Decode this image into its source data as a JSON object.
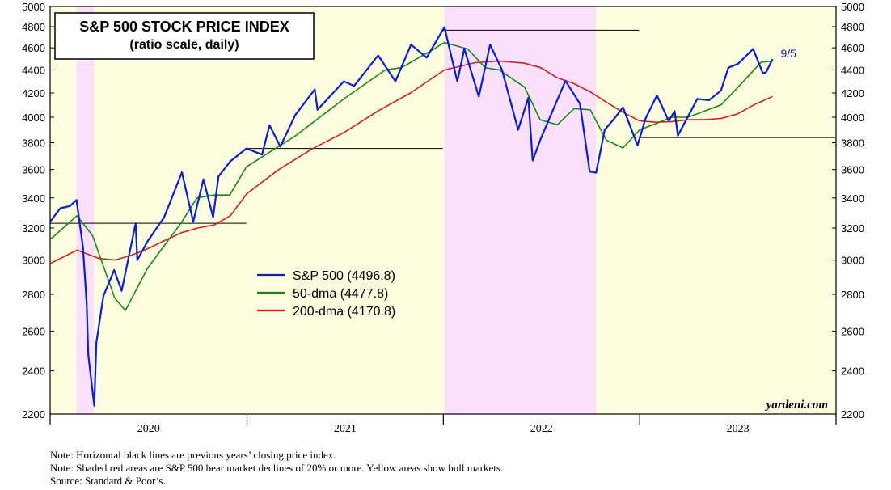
{
  "chart_data": {
    "type": "line",
    "title": "S&P 500 STOCK PRICE INDEX",
    "subtitle": "(ratio scale, daily)",
    "scale": "log",
    "ylim": [
      2200,
      5000
    ],
    "yticks": [
      2200,
      2400,
      2600,
      2800,
      3000,
      3200,
      3400,
      3600,
      3800,
      4000,
      4200,
      4400,
      4600,
      4800,
      5000
    ],
    "xlim": [
      "2020-01-01",
      "2024-01-01"
    ],
    "xticks": [
      "2020-01-01",
      "2021-01-01",
      "2022-01-01",
      "2023-01-01",
      "2024-01-01"
    ],
    "year_labels": [
      "2020",
      "2021",
      "2022",
      "2023"
    ],
    "bull_color": "#fdfde0",
    "bear_color": "#fbe0fb",
    "bear_markets": [
      [
        "2020-02-19",
        "2020-03-23"
      ],
      [
        "2022-01-03",
        "2022-10-12"
      ]
    ],
    "prev_year_closes": [
      {
        "value": 3230.8,
        "from": "2020-01-01",
        "to": "2020-12-31"
      },
      {
        "value": 3756.1,
        "from": "2021-01-01",
        "to": "2021-12-31"
      },
      {
        "value": 4766.2,
        "from": "2022-01-01",
        "to": "2022-12-31"
      },
      {
        "value": 3839.5,
        "from": "2023-01-01",
        "to": "2023-12-31"
      }
    ],
    "series": [
      {
        "name": "S&P 500 (4496.8)",
        "color": "#0a1ed2",
        "x": [
          "2020-01-02",
          "2020-01-20",
          "2020-02-07",
          "2020-02-19",
          "2020-03-02",
          "2020-03-09",
          "2020-03-12",
          "2020-03-16",
          "2020-03-23",
          "2020-03-27",
          "2020-04-09",
          "2020-04-29",
          "2020-05-13",
          "2020-06-08",
          "2020-06-11",
          "2020-07-01",
          "2020-07-31",
          "2020-09-02",
          "2020-09-23",
          "2020-10-12",
          "2020-10-30",
          "2020-11-09",
          "2020-12-01",
          "2020-12-31",
          "2021-01-29",
          "2021-02-12",
          "2021-03-04",
          "2021-04-01",
          "2021-05-07",
          "2021-05-12",
          "2021-06-30",
          "2021-07-19",
          "2021-08-31",
          "2021-09-02",
          "2021-10-04",
          "2021-11-02",
          "2021-12-01",
          "2022-01-03",
          "2022-01-27",
          "2022-02-09",
          "2022-03-08",
          "2022-03-29",
          "2022-04-20",
          "2022-05-20",
          "2022-06-08",
          "2022-06-16",
          "2022-07-01",
          "2022-08-16",
          "2022-09-12",
          "2022-09-30",
          "2022-10-12",
          "2022-10-28",
          "2022-11-15",
          "2022-12-01",
          "2022-12-28",
          "2023-01-12",
          "2023-02-02",
          "2023-02-24",
          "2023-03-07",
          "2023-03-13",
          "2023-04-18",
          "2023-05-10",
          "2023-06-01",
          "2023-06-15",
          "2023-07-03",
          "2023-07-31",
          "2023-08-18",
          "2023-08-24",
          "2023-09-05"
        ],
        "values": [
          3245,
          3330,
          3345,
          3386,
          3080,
          2750,
          2480,
          2386,
          2237,
          2540,
          2790,
          2940,
          2820,
          3230,
          3000,
          3120,
          3270,
          3580,
          3240,
          3530,
          3270,
          3550,
          3660,
          3756,
          3710,
          3935,
          3770,
          4020,
          4230,
          4060,
          4300,
          4260,
          4520,
          4530,
          4300,
          4630,
          4510,
          4796,
          4300,
          4590,
          4170,
          4630,
          4400,
          3900,
          4160,
          3666,
          3830,
          4305,
          4110,
          3585,
          3577,
          3900,
          3990,
          4080,
          3780,
          3990,
          4180,
          3970,
          4050,
          3855,
          4150,
          4140,
          4220,
          4420,
          4455,
          4590,
          4370,
          4380,
          4497
        ]
      },
      {
        "name": "50-dma (4477.8)",
        "color": "#128c12",
        "x": [
          "2020-01-02",
          "2020-02-20",
          "2020-03-20",
          "2020-04-30",
          "2020-05-20",
          "2020-06-30",
          "2020-08-31",
          "2020-09-30",
          "2020-10-31",
          "2020-11-30",
          "2020-12-31",
          "2021-03-31",
          "2021-06-30",
          "2021-09-15",
          "2021-10-15",
          "2021-12-01",
          "2022-01-03",
          "2022-02-15",
          "2022-03-20",
          "2022-04-15",
          "2022-06-01",
          "2022-06-30",
          "2022-08-01",
          "2022-09-01",
          "2022-10-01",
          "2022-10-31",
          "2022-12-01",
          "2023-01-01",
          "2023-02-01",
          "2023-03-01",
          "2023-04-01",
          "2023-06-01",
          "2023-07-01",
          "2023-08-15",
          "2023-09-05"
        ],
        "values": [
          3130,
          3280,
          3150,
          2780,
          2710,
          2950,
          3230,
          3400,
          3420,
          3420,
          3620,
          3850,
          4150,
          4400,
          4420,
          4550,
          4650,
          4590,
          4420,
          4400,
          4250,
          3980,
          3940,
          4070,
          4060,
          3820,
          3760,
          3900,
          3950,
          4000,
          4000,
          4100,
          4240,
          4470,
          4478
        ]
      },
      {
        "name": "200-dma (4170.8)",
        "color": "#dc1a1a",
        "x": [
          "2020-01-02",
          "2020-02-20",
          "2020-04-01",
          "2020-05-01",
          "2020-06-01",
          "2020-07-01",
          "2020-08-01",
          "2020-09-01",
          "2020-10-01",
          "2020-11-01",
          "2020-12-01",
          "2021-01-01",
          "2021-03-01",
          "2021-05-01",
          "2021-07-01",
          "2021-09-01",
          "2021-11-01",
          "2022-01-03",
          "2022-03-01",
          "2022-04-15",
          "2022-06-01",
          "2022-07-01",
          "2022-08-01",
          "2022-09-01",
          "2022-10-01",
          "2022-11-01",
          "2022-12-01",
          "2023-01-01",
          "2023-02-01",
          "2023-03-01",
          "2023-04-01",
          "2023-05-01",
          "2023-06-01",
          "2023-07-01",
          "2023-08-01",
          "2023-09-05"
        ],
        "values": [
          2980,
          3060,
          3010,
          3000,
          3030,
          3070,
          3120,
          3170,
          3200,
          3220,
          3280,
          3430,
          3600,
          3750,
          3880,
          4050,
          4200,
          4400,
          4465,
          4480,
          4460,
          4420,
          4330,
          4280,
          4210,
          4120,
          4040,
          3970,
          3960,
          3965,
          3980,
          3980,
          3990,
          4025,
          4100,
          4171
        ]
      }
    ],
    "annotations": [
      {
        "text": "9/5",
        "x": "2023-09-05"
      }
    ],
    "legend_position": "center-left",
    "watermark": "yardeni.com",
    "grid": false
  },
  "notes": [
    "Note: Horizontal black lines are previous years’ closing price index.",
    "Note: Shaded red areas are S&P 500 bear market declines of 20% or more. Yellow areas show bull markets.",
    "Source: Standard & Poor’s."
  ]
}
